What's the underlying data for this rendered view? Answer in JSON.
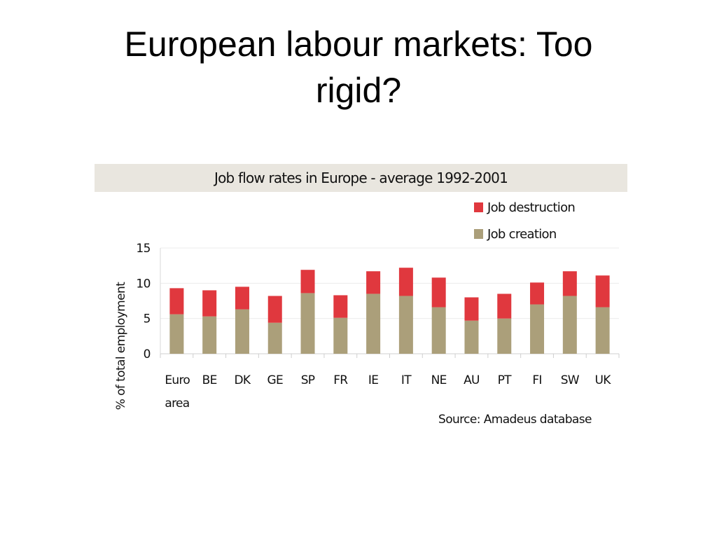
{
  "slide": {
    "title_line1": "European labour markets: Too",
    "title_line2": "rigid?"
  },
  "chart_data": {
    "type": "bar",
    "stacked": true,
    "title": "Job flow rates in Europe - average 1992-2001",
    "ylabel": "% of total employment",
    "xlabel": "",
    "ylim": [
      0,
      15
    ],
    "yticks": [
      0,
      5,
      10,
      15
    ],
    "grid": true,
    "legend_position": "top-right",
    "categories": [
      [
        "Euro",
        "area"
      ],
      [
        "BE"
      ],
      [
        "DK"
      ],
      [
        "GE"
      ],
      [
        "SP"
      ],
      [
        "FR"
      ],
      [
        "IE"
      ],
      [
        "IT"
      ],
      [
        "NE"
      ],
      [
        "AU"
      ],
      [
        "PT"
      ],
      [
        "FI"
      ],
      [
        "SW"
      ],
      [
        "UK"
      ]
    ],
    "series": [
      {
        "name": "Job creation",
        "color": "#ab9f7a",
        "values": [
          5.6,
          5.3,
          6.3,
          4.4,
          8.6,
          5.1,
          8.5,
          8.2,
          6.6,
          4.7,
          5.0,
          7.0,
          8.2,
          6.6
        ]
      },
      {
        "name": "Job destruction",
        "color": "#e0383e",
        "values": [
          3.7,
          3.7,
          3.2,
          3.8,
          3.3,
          3.2,
          3.2,
          4.0,
          4.2,
          3.3,
          3.5,
          3.1,
          3.5,
          4.5
        ]
      }
    ],
    "legend_order": [
      "Job destruction",
      "Job creation"
    ],
    "source": "Source: Amadeus database"
  }
}
